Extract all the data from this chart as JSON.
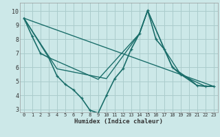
{
  "xlabel": "Humidex (Indice chaleur)",
  "bg_color": "#cce8e8",
  "grid_color": "#aacccc",
  "line_color": "#1a6e6a",
  "xlim": [
    -0.5,
    23.5
  ],
  "ylim": [
    2.8,
    10.6
  ],
  "yticks": [
    3,
    4,
    5,
    6,
    7,
    8,
    9,
    10
  ],
  "xticks": [
    0,
    1,
    2,
    3,
    4,
    5,
    6,
    7,
    8,
    9,
    10,
    11,
    12,
    13,
    14,
    15,
    16,
    17,
    18,
    19,
    20,
    21,
    22,
    23
  ],
  "series": [
    {
      "x": [
        0,
        1,
        2,
        3,
        4,
        5,
        6,
        7,
        8,
        9,
        10,
        11,
        12,
        13,
        14,
        15,
        16,
        17,
        18,
        19,
        20,
        21,
        22,
        23
      ],
      "y": [
        9.5,
        8.2,
        7.0,
        6.7,
        5.4,
        4.8,
        4.4,
        3.8,
        2.95,
        2.75,
        4.0,
        5.2,
        5.9,
        7.3,
        8.4,
        10.05,
        8.0,
        7.3,
        6.0,
        5.5,
        5.2,
        4.7,
        4.65,
        4.65
      ],
      "marker": true,
      "linewidth": 1.2
    },
    {
      "x": [
        0,
        3,
        9,
        14,
        15,
        17,
        19,
        21,
        23
      ],
      "y": [
        9.5,
        6.7,
        5.15,
        8.4,
        10.05,
        7.3,
        5.5,
        4.7,
        4.65
      ],
      "marker": false,
      "linewidth": 1.0
    },
    {
      "x": [
        0,
        4,
        10,
        14,
        15,
        18,
        20,
        22,
        23
      ],
      "y": [
        9.5,
        5.9,
        5.2,
        8.4,
        10.05,
        6.0,
        5.2,
        4.65,
        4.65
      ],
      "marker": false,
      "linewidth": 1.0
    },
    {
      "x": [
        0,
        23
      ],
      "y": [
        9.5,
        4.65
      ],
      "marker": false,
      "linewidth": 1.0
    }
  ]
}
